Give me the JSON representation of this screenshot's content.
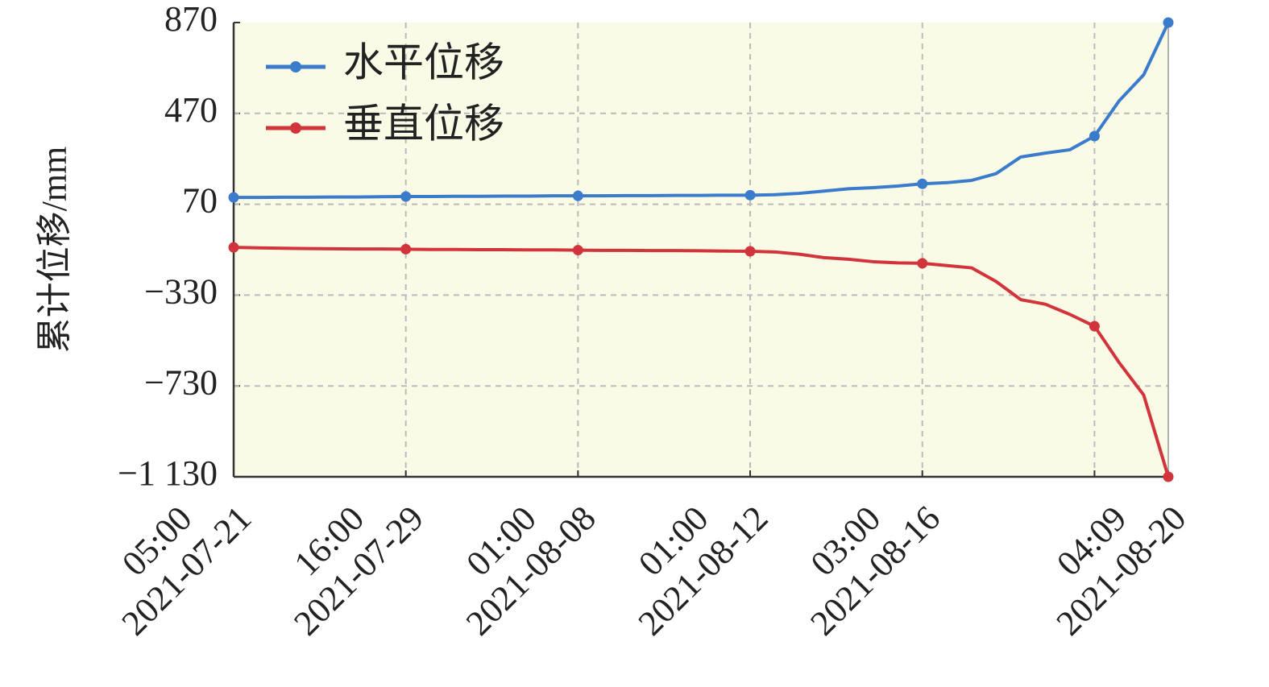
{
  "chart_data": {
    "type": "line",
    "y_label": "累计位移/mm",
    "categories": [
      "2021-07-21",
      null,
      null,
      null,
      null,
      null,
      null,
      "2021-07-29",
      null,
      null,
      null,
      null,
      null,
      null,
      "2021-08-08",
      null,
      null,
      null,
      null,
      null,
      null,
      "2021-08-12",
      null,
      null,
      null,
      null,
      null,
      null,
      "2021-08-16",
      null,
      null,
      null,
      null,
      null,
      null,
      null,
      null,
      null,
      "2021-08-20"
    ],
    "time_labels": [
      "05:00",
      null,
      null,
      null,
      null,
      null,
      null,
      "16:00",
      null,
      null,
      null,
      null,
      null,
      null,
      "01:00",
      null,
      null,
      null,
      null,
      null,
      null,
      "01:00",
      null,
      null,
      null,
      null,
      null,
      null,
      "03:00",
      null,
      null,
      null,
      null,
      null,
      null,
      null,
      null,
      null,
      "04:09"
    ],
    "series": [
      {
        "name": "水平位移",
        "color": "#3b7bcb",
        "values": [
          100,
          100,
          101,
          101,
          102,
          102,
          103,
          104,
          104,
          105,
          105,
          106,
          106,
          107,
          107,
          107,
          108,
          108,
          109,
          109,
          110,
          110,
          112,
          118,
          128,
          138,
          143,
          150,
          160,
          165,
          175,
          205,
          278,
          295,
          310,
          370,
          525,
          640,
          870
        ]
      },
      {
        "name": "垂直位移",
        "color": "#d1343b",
        "values": [
          -120,
          -122,
          -124,
          -125,
          -126,
          -127,
          -127,
          -128,
          -129,
          -129,
          -130,
          -130,
          -131,
          -131,
          -132,
          -133,
          -133,
          -134,
          -134,
          -135,
          -136,
          -137,
          -140,
          -150,
          -165,
          -172,
          -183,
          -188,
          -190,
          -200,
          -210,
          -270,
          -350,
          -370,
          -415,
          -467,
          -627,
          -770,
          -1130
        ]
      }
    ],
    "ylim": [
      -1130,
      870
    ],
    "yticks": [
      870,
      470,
      70,
      {
        "value": -330,
        "label": "−330"
      },
      {
        "value": -730,
        "label": "−730"
      },
      {
        "value": -1130,
        "label": "−1 130"
      }
    ],
    "grid": true,
    "legend": "upper left",
    "background": "#fafbe6"
  }
}
